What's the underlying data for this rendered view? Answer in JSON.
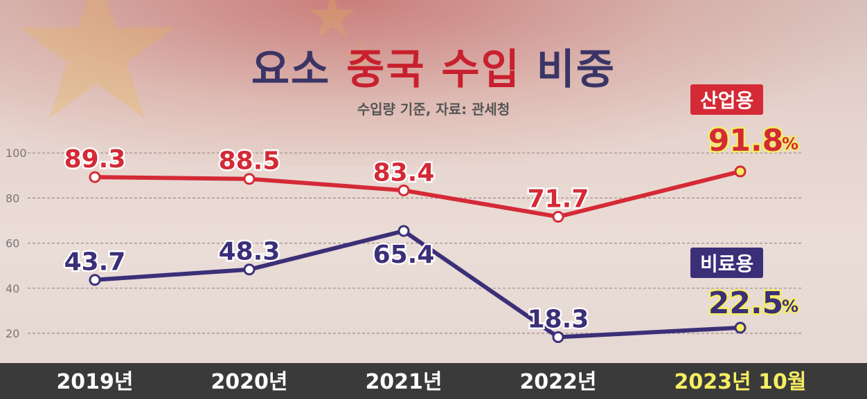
{
  "title": {
    "part1": "요소",
    "part2": "중국 수입",
    "part3": "비중"
  },
  "subtitle": "수입량 기준, 자료: 관세청",
  "colors": {
    "industrial": "#d42a36",
    "fertilizer": "#3b2f78",
    "highlight": "#f5ee63"
  },
  "chart_data": {
    "type": "line",
    "categories": [
      "2019년",
      "2020년",
      "2021년",
      "2022년",
      "2023년 10월"
    ],
    "ylim": [
      10,
      105
    ],
    "yticks": [
      "20",
      "40",
      "60",
      "80",
      "100"
    ],
    "grid": true,
    "series": [
      {
        "name": "산업용",
        "values": [
          89.3,
          88.5,
          83.4,
          71.7,
          91.8
        ],
        "labels": [
          "89.3",
          "88.5",
          "83.4",
          "71.7",
          "91.8"
        ],
        "unit": "%"
      },
      {
        "name": "비료용",
        "values": [
          43.7,
          48.3,
          65.4,
          18.3,
          22.5
        ],
        "labels": [
          "43.7",
          "48.3",
          "65.4",
          "18.3",
          "22.5"
        ],
        "unit": "%"
      }
    ]
  }
}
